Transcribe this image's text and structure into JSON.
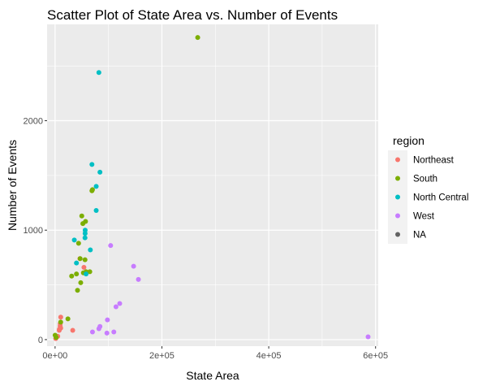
{
  "chart_data": {
    "type": "scatter",
    "title": "Scatter Plot of State Area vs. Number of Events",
    "xlabel": "State Area",
    "ylabel": "Number of Events",
    "xlim": [
      -15000,
      605000
    ],
    "ylim": [
      -60,
      2880
    ],
    "x_ticks": [
      0,
      200000,
      400000,
      600000
    ],
    "x_tick_labels": [
      "0e+00",
      "2e+05",
      "4e+05",
      "6e+05"
    ],
    "y_ticks": [
      0,
      1000,
      2000
    ],
    "y_tick_labels": [
      "0",
      "1000",
      "2000"
    ],
    "grid": true,
    "legend": {
      "title": "region",
      "placement": "right",
      "entries": [
        {
          "name": "Northeast",
          "color": "#F8766D"
        },
        {
          "name": "South",
          "color": "#7CAE00"
        },
        {
          "name": "North Central",
          "color": "#00BFC4"
        },
        {
          "name": "West",
          "color": "#C77CFF"
        },
        {
          "name": "NA",
          "color": "#636363"
        }
      ]
    },
    "series": [
      {
        "name": "Northeast",
        "points": [
          [
            1200,
            10
          ],
          [
            5000,
            30
          ],
          [
            7800,
            85
          ],
          [
            8000,
            95
          ],
          [
            9500,
            125
          ],
          [
            9600,
            145
          ],
          [
            10500,
            105
          ],
          [
            10600,
            205
          ],
          [
            33000,
            85
          ],
          [
            46500,
            740
          ],
          [
            54000,
            660
          ]
        ]
      },
      {
        "name": "South",
        "points": [
          [
            60,
            40
          ],
          [
            2000,
            20
          ],
          [
            24000,
            190
          ],
          [
            10500,
            160
          ],
          [
            31000,
            580
          ],
          [
            42000,
            450
          ],
          [
            40000,
            600
          ],
          [
            44000,
            880
          ],
          [
            46900,
            740
          ],
          [
            48000,
            520
          ],
          [
            50000,
            1130
          ],
          [
            52000,
            1060
          ],
          [
            53000,
            610
          ],
          [
            57000,
            1080
          ],
          [
            56000,
            730
          ],
          [
            58000,
            620
          ],
          [
            65000,
            620
          ],
          [
            69000,
            1360
          ],
          [
            70000,
            1370
          ],
          [
            267000,
            2760
          ]
        ]
      },
      {
        "name": "North Central",
        "points": [
          [
            36000,
            910
          ],
          [
            40000,
            700
          ],
          [
            56000,
            930
          ],
          [
            56200,
            970
          ],
          [
            56300,
            1000
          ],
          [
            58000,
            600
          ],
          [
            66000,
            820
          ],
          [
            69000,
            1600
          ],
          [
            77000,
            1180
          ],
          [
            77000,
            1400
          ],
          [
            82000,
            2440
          ],
          [
            84000,
            1530
          ]
        ]
      },
      {
        "name": "West",
        "points": [
          [
            70000,
            70
          ],
          [
            82000,
            100
          ],
          [
            84000,
            120
          ],
          [
            97000,
            60
          ],
          [
            98000,
            180
          ],
          [
            104000,
            860
          ],
          [
            110000,
            70
          ],
          [
            114000,
            300
          ],
          [
            121000,
            330
          ],
          [
            147000,
            670
          ],
          [
            156000,
            550
          ],
          [
            586000,
            25
          ]
        ]
      },
      {
        "name": "NA",
        "points": []
      }
    ]
  }
}
